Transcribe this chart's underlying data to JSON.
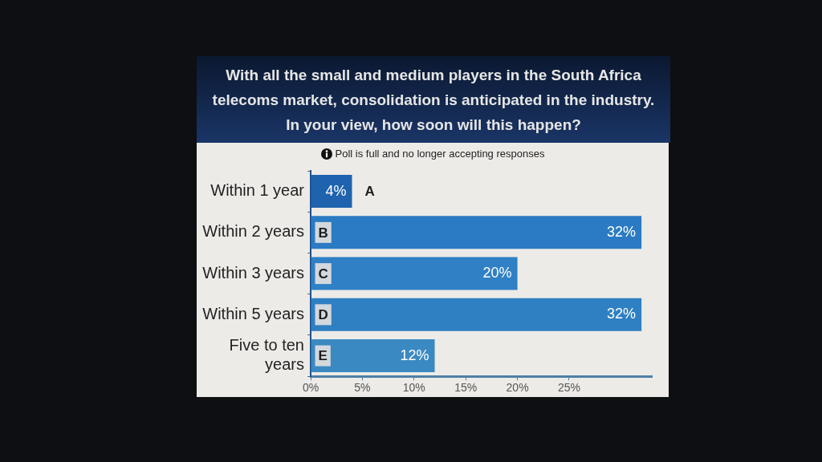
{
  "chart_data": {
    "type": "bar",
    "orientation": "horizontal",
    "title": "With all the small and medium players in the South Africa telecoms market, consolidation is anticipated in the industry. In your view, how soon will this happen?",
    "subtitle": "Poll is full and no longer accepting responses",
    "categories": [
      "Within 1 year",
      "Within 2 years",
      "Within 3 years",
      "Within 5 years",
      "Five to ten years"
    ],
    "values": [
      4,
      32,
      20,
      32,
      12
    ],
    "colors": [
      "#1f63ae",
      "#2a7bc3",
      "#2f80c4",
      "#2f80c3",
      "#3a89c2"
    ],
    "value_labels": [
      "4%",
      "32%",
      "20%",
      "32%",
      "12%"
    ],
    "annotations": [
      "A",
      "B",
      "C",
      "D",
      "E"
    ],
    "xlim": [
      0,
      33
    ],
    "xticks": [
      {
        "value": 0,
        "label": "0%"
      },
      {
        "value": 5,
        "label": "5%"
      },
      {
        "value": 10,
        "label": "10%"
      },
      {
        "value": 15,
        "label": "15%"
      },
      {
        "value": 20,
        "label": "20%"
      },
      {
        "value": 25,
        "label": "25%"
      }
    ],
    "grid": false
  }
}
